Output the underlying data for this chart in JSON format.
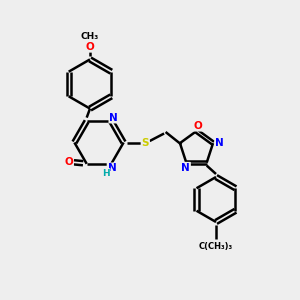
{
  "bg_color": "#eeeeee",
  "atom_colors": {
    "N": "#0000ff",
    "O": "#ff0000",
    "S": "#cccc00",
    "H": "#00aaaa",
    "C": "#000000"
  },
  "lw": 1.8,
  "dbo": 0.07
}
